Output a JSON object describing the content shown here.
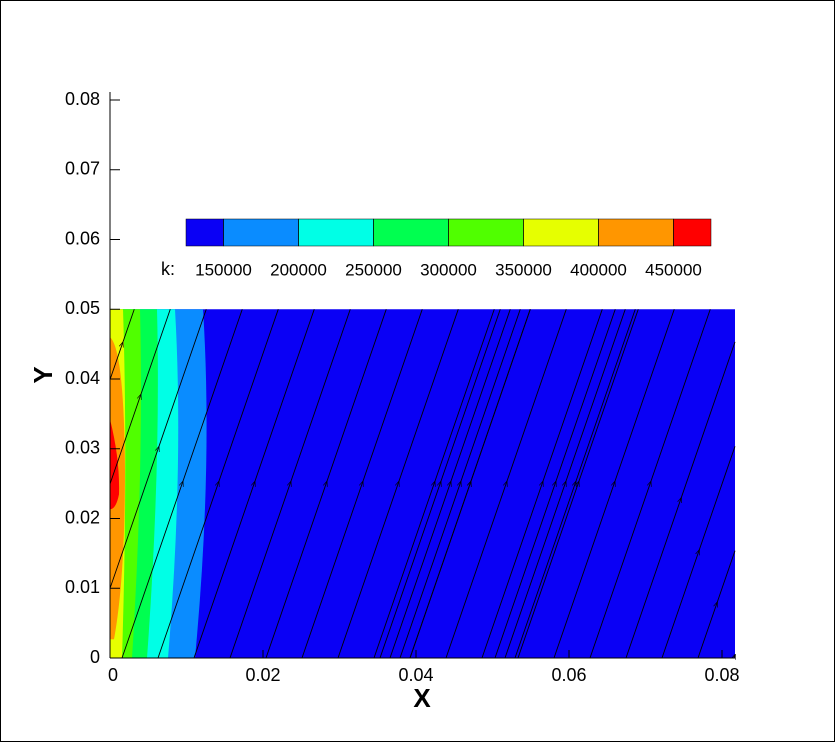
{
  "chart_data": {
    "type": "contour",
    "x_label": "X",
    "y_label": "Y",
    "xlim": [
      0,
      0.0817
    ],
    "ylim": [
      0,
      0.08
    ],
    "xticks": [
      0,
      0.02,
      0.04,
      0.06,
      0.08
    ],
    "yticks": [
      0,
      0.01,
      0.02,
      0.03,
      0.04,
      0.05,
      0.06,
      0.07,
      0.08
    ],
    "domain_top": 0.05,
    "legend_label": "k:",
    "levels": [
      150000,
      200000,
      250000,
      300000,
      350000,
      400000,
      450000
    ],
    "level_colors": [
      "#0a00f5",
      "#0a8cff",
      "#00ffe6",
      "#00ff50",
      "#50ff00",
      "#e6ff00",
      "#ff9600",
      "#ff0000"
    ]
  }
}
